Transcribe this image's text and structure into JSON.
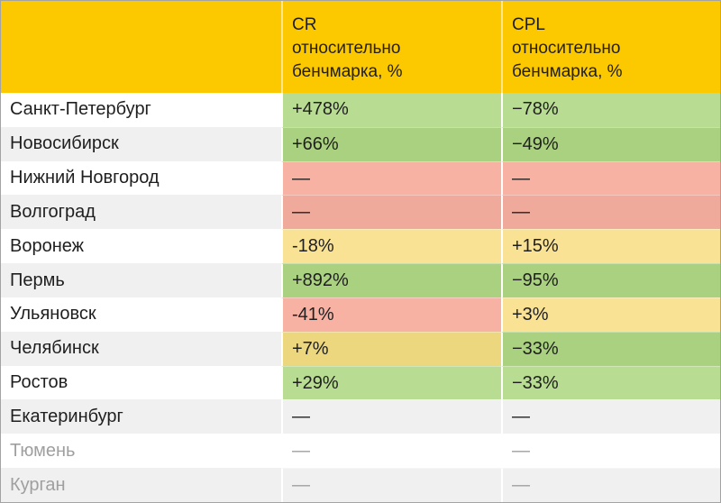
{
  "table": {
    "header": {
      "city_label": "",
      "cr_label": "CR\nотносительно\nбенчмарка, %",
      "cpl_label": "CPL\nотносительно\nбенчмарка, %"
    },
    "rows": [
      {
        "city": "Санкт-Петербург",
        "cr": "+478%",
        "cpl": "−78%",
        "cr_status": "good",
        "cpl_status": "good"
      },
      {
        "city": "Новосибирск",
        "cr": "+66%",
        "cpl": "−49%",
        "cr_status": "good",
        "cpl_status": "good"
      },
      {
        "city": "Нижний Новгород",
        "cr": "—",
        "cpl": "—",
        "cr_status": "bad",
        "cpl_status": "bad"
      },
      {
        "city": "Волгоград",
        "cr": "—",
        "cpl": "—",
        "cr_status": "bad",
        "cpl_status": "bad"
      },
      {
        "city": "Воронеж",
        "cr": "-18%",
        "cpl": "+15%",
        "cr_status": "mid",
        "cpl_status": "mid"
      },
      {
        "city": "Пермь",
        "cr": "+892%",
        "cpl": "−95%",
        "cr_status": "good",
        "cpl_status": "good"
      },
      {
        "city": "Ульяновск",
        "cr": "-41%",
        "cpl": "+3%",
        "cr_status": "bad",
        "cpl_status": "mid"
      },
      {
        "city": "Челябинск",
        "cr": "+7%",
        "cpl": "−33%",
        "cr_status": "mid",
        "cpl_status": "good"
      },
      {
        "city": "Ростов",
        "cr": "+29%",
        "cpl": "−33%",
        "cr_status": "good",
        "cpl_status": "good"
      },
      {
        "city": "Екатеринбург",
        "cr": "—",
        "cpl": "—",
        "cr_status": "none",
        "cpl_status": "none"
      },
      {
        "city": "Тюмень",
        "cr": "—",
        "cpl": "—",
        "cr_status": "none",
        "cpl_status": "none",
        "muted": true
      },
      {
        "city": "Курган",
        "cr": "—",
        "cpl": "—",
        "cr_status": "none",
        "cpl_status": "none",
        "muted": true
      }
    ],
    "colors": {
      "header_bg": "#fcc800",
      "good_cell": "#b7dc92",
      "good_cell_striped": "#aad17f",
      "mid_cell": "#fae294",
      "mid_cell_striped": "#ecd67e",
      "bad_cell": "#f8b2a4",
      "bad_cell_striped": "#f0aa9c",
      "stripe_bg": "#f0f0f0",
      "text": "#1f1f1f",
      "muted_text": "#9f9f9f"
    }
  }
}
